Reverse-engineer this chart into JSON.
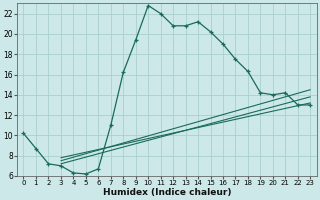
{
  "xlabel": "Humidex (Indice chaleur)",
  "bg_color": "#cce8e8",
  "grid_color": "#aacfcf",
  "line_color": "#1a6b5a",
  "xlim": [
    -0.5,
    23.5
  ],
  "ylim": [
    6,
    23
  ],
  "yticks": [
    6,
    8,
    10,
    12,
    14,
    16,
    18,
    20,
    22
  ],
  "xticks": [
    0,
    1,
    2,
    3,
    4,
    5,
    6,
    7,
    8,
    9,
    10,
    11,
    12,
    13,
    14,
    15,
    16,
    17,
    18,
    19,
    20,
    21,
    22,
    23
  ],
  "main_x": [
    0,
    1,
    2,
    3,
    4,
    5,
    6,
    7,
    8,
    9,
    10,
    11,
    12,
    13,
    14,
    15,
    16,
    17,
    18,
    19,
    20,
    21,
    22,
    23
  ],
  "main_y": [
    10.2,
    8.7,
    7.2,
    7.0,
    6.3,
    6.2,
    6.7,
    11.0,
    16.2,
    19.4,
    22.8,
    22.0,
    20.8,
    20.8,
    21.2,
    20.2,
    19.0,
    17.5,
    16.3,
    14.2,
    14.0,
    14.2,
    13.0,
    13.0
  ],
  "line1_x": [
    3,
    23
  ],
  "line1_y": [
    7.5,
    14.5
  ],
  "line2_x": [
    3,
    23
  ],
  "line2_y": [
    7.2,
    13.8
  ],
  "line3_x": [
    3,
    23
  ],
  "line3_y": [
    7.8,
    13.2
  ]
}
